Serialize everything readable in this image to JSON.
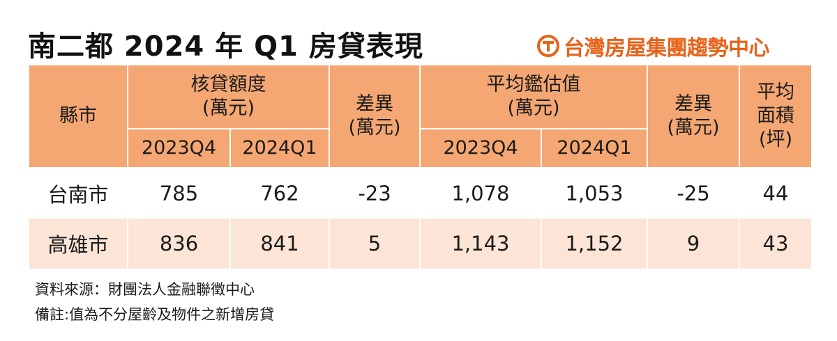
{
  "title": "南二都 2024 年 Q1 房貸表現",
  "logo": {
    "text": "台灣房屋集團趨勢中心",
    "icon": "taiwan-house-logo-icon",
    "color": "#e8631a"
  },
  "colors": {
    "header_bg": "#f4a772",
    "row_alt_bg": "#fce5d6"
  },
  "table": {
    "headers": {
      "city": "縣市",
      "loan_amount": "核貸額度\n(萬元)",
      "diff_1": "差異\n(萬元)",
      "avg_valuation": "平均鑑估值\n(萬元)",
      "diff_2": "差異\n(萬元)",
      "avg_area": "平均\n面積\n(坪)",
      "q_prev_1": "2023Q4",
      "q_curr_1": "2024Q1",
      "q_prev_2": "2023Q4",
      "q_curr_2": "2024Q1"
    },
    "rows": [
      {
        "city": "台南市",
        "loan_2023q4": "785",
        "loan_2024q1": "762",
        "loan_diff": "-23",
        "val_2023q4": "1,078",
        "val_2024q1": "1,053",
        "val_diff": "-25",
        "area": "44"
      },
      {
        "city": "高雄市",
        "loan_2023q4": "836",
        "loan_2024q1": "841",
        "loan_diff": "5",
        "val_2023q4": "1,143",
        "val_2024q1": "1,152",
        "val_diff": "9",
        "area": "43"
      }
    ]
  },
  "notes": {
    "source": "資料來源：財團法人金融聯徵中心",
    "remark": "備註:值為不分屋齡及物件之新增房貸"
  }
}
